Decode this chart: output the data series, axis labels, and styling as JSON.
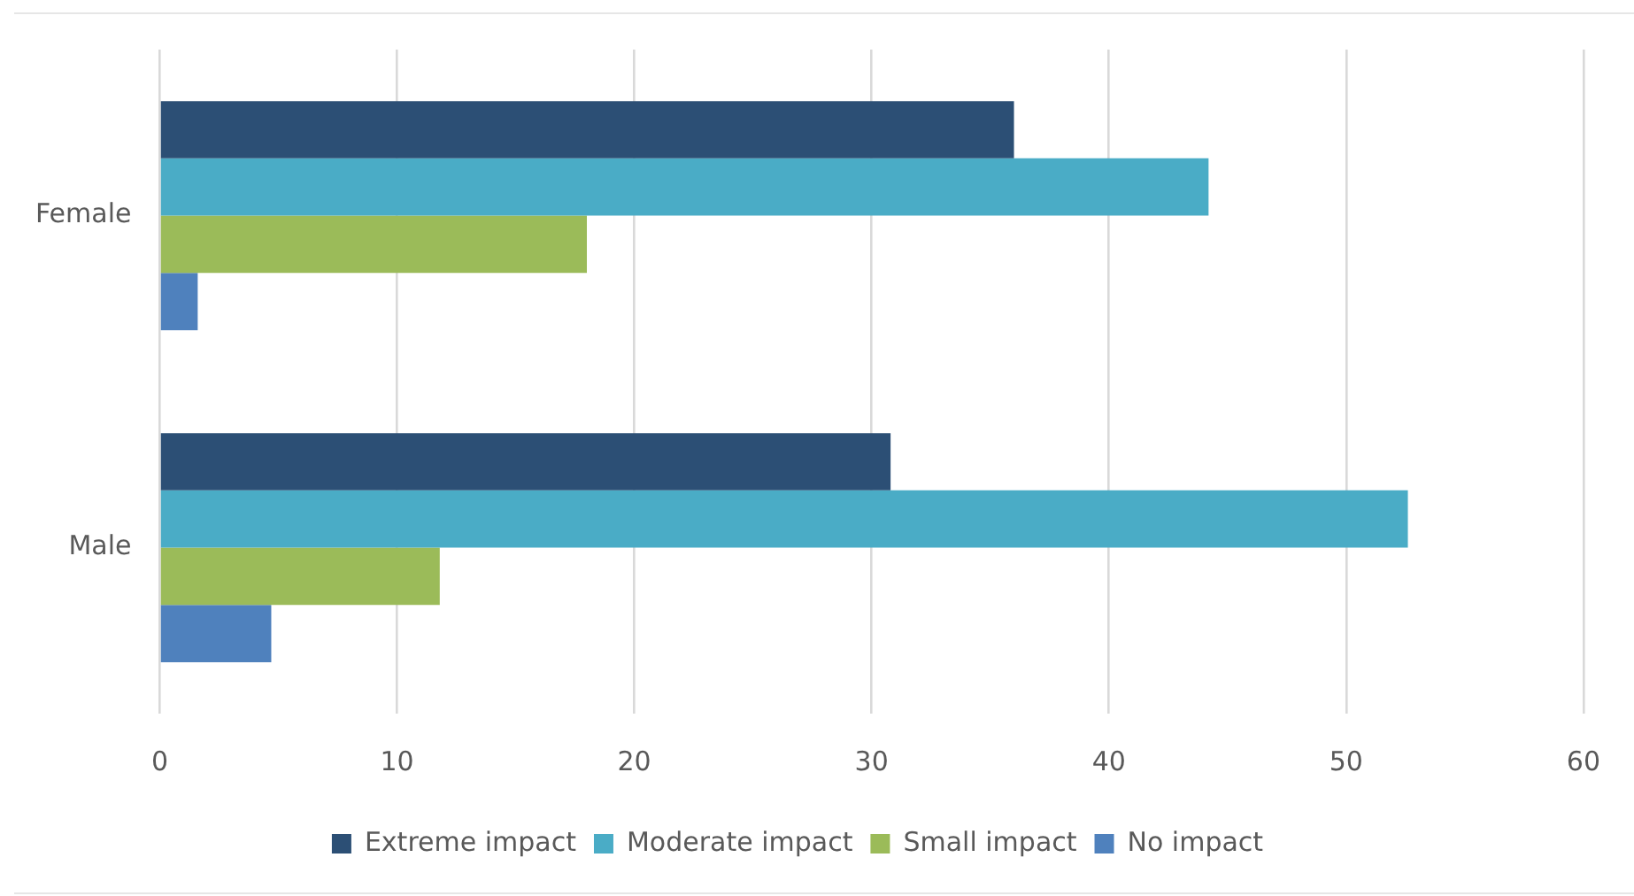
{
  "chart_data": {
    "type": "bar",
    "orientation": "horizontal",
    "categories": [
      "Female",
      "Male"
    ],
    "series": [
      {
        "name": "Extreme impact",
        "color": "#2c4f75",
        "values": [
          36.0,
          30.8
        ]
      },
      {
        "name": "Moderate impact",
        "color": "#4aacc6",
        "values": [
          44.2,
          52.6
        ]
      },
      {
        "name": "Small impact",
        "color": "#9bbb59",
        "values": [
          18.0,
          11.8
        ]
      },
      {
        "name": "No impact",
        "color": "#4f81bd",
        "values": [
          1.6,
          4.7
        ]
      }
    ],
    "xlim": [
      0,
      60
    ],
    "xticks": [
      0,
      10,
      20,
      30,
      40,
      50,
      60
    ],
    "grid": "x",
    "legend": "bottom"
  }
}
